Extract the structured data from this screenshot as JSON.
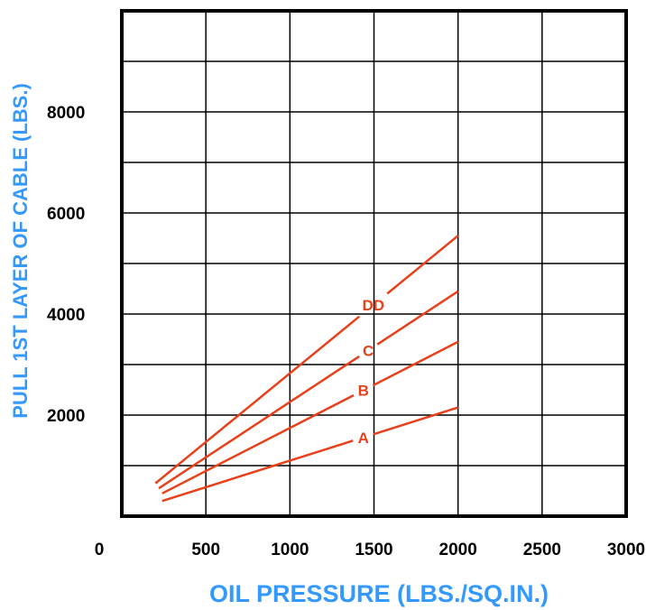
{
  "chart_data": {
    "type": "line",
    "xlabel": "OIL PRESSURE (LBS./SQ.IN.)",
    "ylabel": "PULL 1ST LAYER OF CABLE (LBS.)",
    "xlim": [
      0,
      3000
    ],
    "ylim": [
      0,
      10000
    ],
    "x_ticks": [
      0,
      500,
      1000,
      1500,
      2000,
      2500,
      3000
    ],
    "x_tick_labels": [
      "0",
      "500",
      "1000",
      "1500",
      "2000",
      "2500",
      "3000"
    ],
    "y_ticks": [
      2000,
      4000,
      6000,
      8000
    ],
    "y_tick_labels": [
      "2000",
      "4000",
      "6000",
      "8000"
    ],
    "grid": true,
    "line_color": "#e8401a",
    "axis_title_color": "#3399ff",
    "series": [
      {
        "name": "A",
        "x": [
          240,
          2000
        ],
        "y": [
          300,
          2150
        ]
      },
      {
        "name": "B",
        "x": [
          240,
          2000
        ],
        "y": [
          450,
          3450
        ]
      },
      {
        "name": "C",
        "x": [
          220,
          2000
        ],
        "y": [
          550,
          4450
        ]
      },
      {
        "name": "DD",
        "x": [
          200,
          2000
        ],
        "y": [
          650,
          5550
        ]
      }
    ]
  }
}
